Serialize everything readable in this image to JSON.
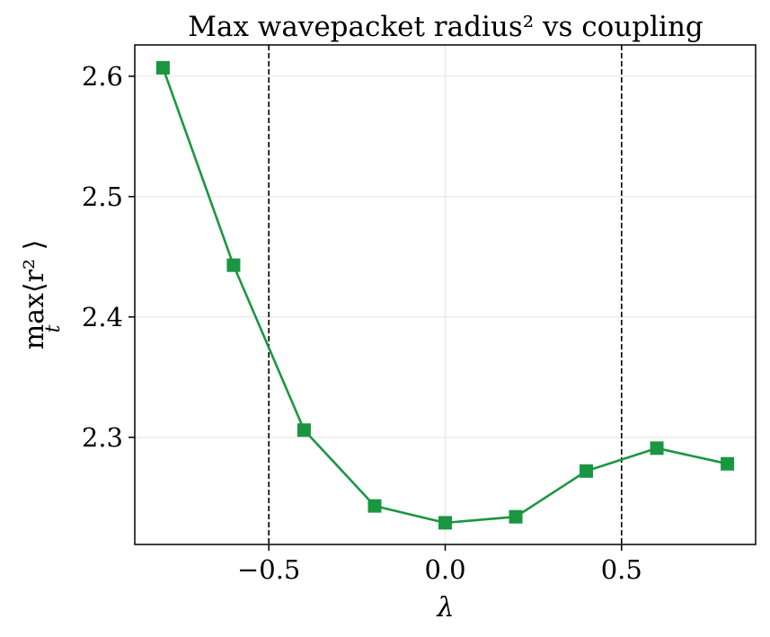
{
  "chart_data": {
    "type": "line",
    "title": "Max wavepacket radius² vs coupling",
    "xlabel": "λ",
    "ylabel": {
      "main": "max⟨r² ⟩",
      "subscript": "t"
    },
    "x": [
      -0.8,
      -0.6,
      -0.4,
      -0.2,
      0.0,
      0.2,
      0.4,
      0.6,
      0.8
    ],
    "series": [
      {
        "values": [
          2.607,
          2.443,
          2.306,
          2.243,
          2.229,
          2.234,
          2.272,
          2.291,
          2.278
        ],
        "color": "#1a9641",
        "marker": "square"
      }
    ],
    "xlim": [
      -0.88,
      0.88
    ],
    "ylim": [
      2.211,
      2.626
    ],
    "xticks": [
      -0.5,
      0.0,
      0.5
    ],
    "xtick_labels": [
      "−0.5",
      "0.0",
      "0.5"
    ],
    "yticks": [
      2.3,
      2.4,
      2.5,
      2.6
    ],
    "ytick_labels": [
      "2.3",
      "2.4",
      "2.5",
      "2.6"
    ],
    "vlines": [
      -0.5,
      0.5
    ],
    "vline_style": "dashed",
    "grid": true
  }
}
